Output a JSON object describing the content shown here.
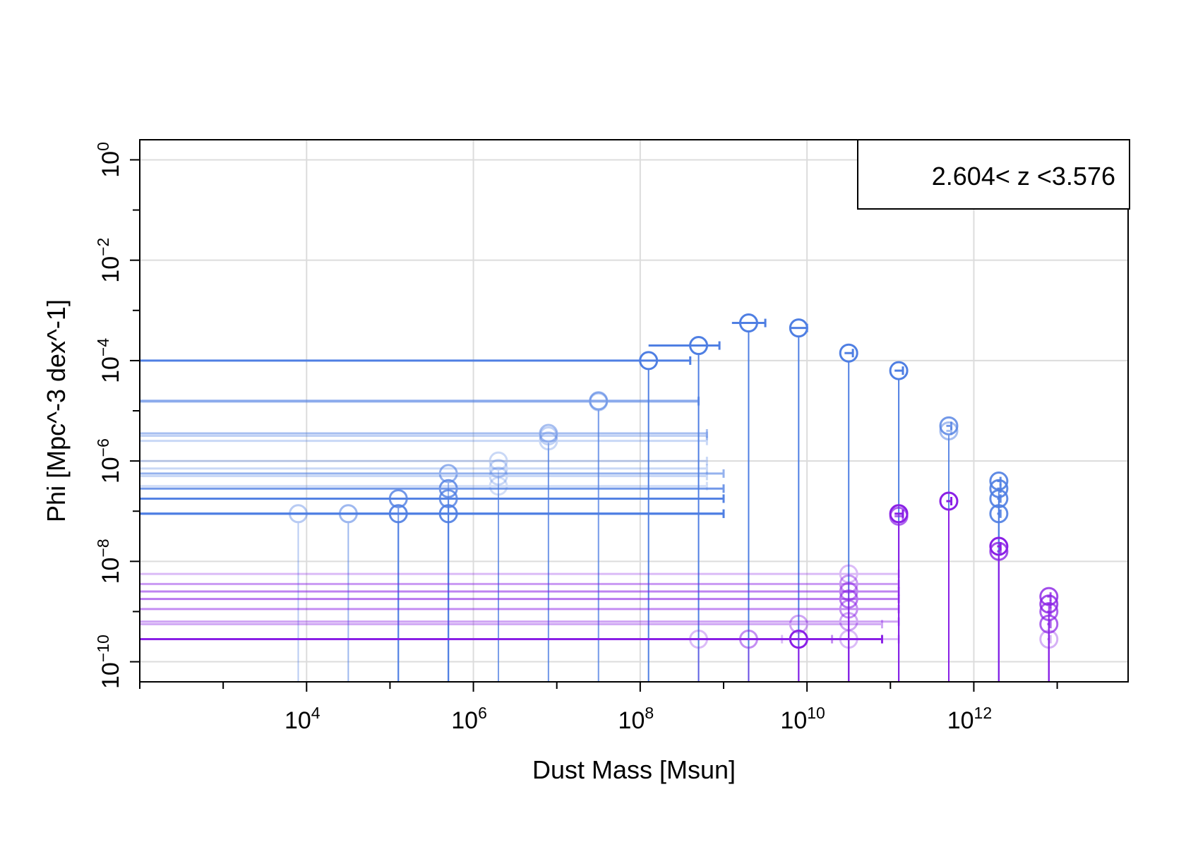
{
  "chart_data": {
    "type": "scatter",
    "title": "",
    "xlabel": "Dust Mass [Msun]",
    "ylabel": "Phi [Mpc^-3 dex^-1]",
    "x_scale": "log",
    "y_scale": "log",
    "xlim_log10": [
      2.0,
      13.85
    ],
    "ylim_log10": [
      -10.4,
      0.4
    ],
    "x_tick_exponents": [
      4,
      6,
      8,
      10,
      12
    ],
    "y_tick_exponents": [
      0,
      -2,
      -4,
      -6,
      -8,
      -10
    ],
    "tick_base": "10",
    "grid": true,
    "legend": {
      "text": "2.604< z <3.576",
      "position": "top-right"
    },
    "series": [
      {
        "color": "#4f7fe3",
        "points": [
          {
            "x": 8.1,
            "y": -4.0,
            "xerr_low": 6.1,
            "xerr_high": 0.5,
            "alpha": 1.0
          },
          {
            "x": 8.7,
            "y": -3.7,
            "xerr_low": 0.6,
            "xerr_high": 0.25,
            "alpha": 1.0
          },
          {
            "x": 9.3,
            "y": -3.25,
            "xerr_low": 0.2,
            "xerr_high": 0.2,
            "alpha": 1.0
          },
          {
            "x": 9.9,
            "y": -3.35,
            "xerr_low": 0.1,
            "xerr_high": 0.1,
            "alpha": 1.0
          },
          {
            "x": 10.5,
            "y": -3.85,
            "xerr_low": 0.05,
            "xerr_high": 0.05,
            "alpha": 1.0
          },
          {
            "x": 11.1,
            "y": -4.2,
            "xerr_low": 0.05,
            "xerr_high": 0.05,
            "alpha": 1.0
          },
          {
            "x": 7.5,
            "y": -4.8,
            "xerr_low": 5.5,
            "xerr_high": 1.2,
            "alpha": 0.6
          },
          {
            "x": 7.5,
            "y": -4.82,
            "xerr_low": 5.5,
            "xerr_high": 1.2,
            "alpha": 0.4
          },
          {
            "x": 6.9,
            "y": -5.45,
            "xerr_low": 4.9,
            "xerr_high": 1.9,
            "alpha": 0.5
          },
          {
            "x": 6.9,
            "y": -5.5,
            "xerr_low": 4.9,
            "xerr_high": 1.9,
            "alpha": 0.35
          },
          {
            "x": 6.9,
            "y": -5.6,
            "xerr_low": 4.9,
            "xerr_high": 1.9,
            "alpha": 0.3
          },
          {
            "x": 11.7,
            "y": -5.3,
            "xerr_low": 0.03,
            "xerr_high": 0.03,
            "alpha": 0.8
          },
          {
            "x": 11.7,
            "y": -5.4,
            "xerr_low": 0.03,
            "xerr_high": 0.03,
            "alpha": 0.5
          },
          {
            "x": 6.3,
            "y": -6.0,
            "xerr_low": 4.3,
            "xerr_high": 2.5,
            "alpha": 0.3
          },
          {
            "x": 6.3,
            "y": -6.15,
            "xerr_low": 4.3,
            "xerr_high": 2.5,
            "alpha": 0.3
          },
          {
            "x": 6.3,
            "y": -6.3,
            "xerr_low": 4.3,
            "xerr_high": 2.5,
            "alpha": 0.3
          },
          {
            "x": 6.3,
            "y": -6.5,
            "xerr_low": 4.3,
            "xerr_high": 2.5,
            "alpha": 0.25
          },
          {
            "x": 5.7,
            "y": -6.25,
            "xerr_low": 3.7,
            "xerr_high": 3.3,
            "alpha": 0.6
          },
          {
            "x": 5.7,
            "y": -6.55,
            "xerr_low": 3.7,
            "xerr_high": 3.3,
            "alpha": 0.8
          },
          {
            "x": 5.7,
            "y": -6.75,
            "xerr_low": 3.7,
            "xerr_high": 3.3,
            "alpha": 0.8
          },
          {
            "x": 5.7,
            "y": -7.05,
            "xerr_low": 3.7,
            "xerr_high": 3.3,
            "alpha": 0.9
          },
          {
            "x": 5.1,
            "y": -6.75,
            "xerr_low": 3.1,
            "xerr_high": 3.9,
            "alpha": 0.8
          },
          {
            "x": 5.1,
            "y": -7.05,
            "xerr_low": 3.1,
            "xerr_high": 3.9,
            "alpha": 0.9
          },
          {
            "x": 4.5,
            "y": -7.05,
            "xerr_low": 2.5,
            "xerr_high": 4.5,
            "alpha": 0.55
          },
          {
            "x": 3.9,
            "y": -7.05,
            "xerr_low": 1.9,
            "xerr_high": 5.1,
            "alpha": 0.4
          },
          {
            "x": 12.3,
            "y": -6.4,
            "xerr_low": 0.02,
            "xerr_high": 0.02,
            "alpha": 0.9
          },
          {
            "x": 12.3,
            "y": -6.55,
            "xerr_low": 0.02,
            "xerr_high": 0.02,
            "alpha": 0.9
          },
          {
            "x": 12.3,
            "y": -6.75,
            "xerr_low": 0.02,
            "xerr_high": 0.02,
            "alpha": 0.9
          },
          {
            "x": 12.3,
            "y": -7.05,
            "xerr_low": 0.02,
            "xerr_high": 0.02,
            "alpha": 0.9
          }
        ]
      },
      {
        "color": "#8a20e6",
        "points": [
          {
            "x": 11.1,
            "y": -7.05,
            "xerr_low": 0.05,
            "xerr_high": 0.05,
            "alpha": 1.0
          },
          {
            "x": 11.1,
            "y": -7.1,
            "xerr_low": 0.05,
            "xerr_high": 0.05,
            "alpha": 0.7
          },
          {
            "x": 11.7,
            "y": -6.8,
            "xerr_low": 0.03,
            "xerr_high": 0.03,
            "alpha": 1.0
          },
          {
            "x": 12.3,
            "y": -7.7,
            "xerr_low": 0.02,
            "xerr_high": 0.02,
            "alpha": 1.0
          },
          {
            "x": 12.3,
            "y": -7.8,
            "xerr_low": 0.02,
            "xerr_high": 0.02,
            "alpha": 0.8
          },
          {
            "x": 12.9,
            "y": -8.7,
            "xerr_low": 0.02,
            "xerr_high": 0.02,
            "alpha": 0.8
          },
          {
            "x": 12.9,
            "y": -8.85,
            "xerr_low": 0.02,
            "xerr_high": 0.02,
            "alpha": 0.8
          },
          {
            "x": 12.9,
            "y": -9.0,
            "xerr_low": 0.02,
            "xerr_high": 0.02,
            "alpha": 0.7
          },
          {
            "x": 12.9,
            "y": -9.25,
            "xerr_low": 0.02,
            "xerr_high": 0.02,
            "alpha": 0.7
          },
          {
            "x": 12.9,
            "y": -9.55,
            "xerr_low": 0.02,
            "xerr_high": 0.02,
            "alpha": 0.35
          },
          {
            "x": 10.5,
            "y": -8.25,
            "xerr_low": 8.5,
            "xerr_high": 0.6,
            "alpha": 0.3
          },
          {
            "x": 10.5,
            "y": -8.45,
            "xerr_low": 8.5,
            "xerr_high": 0.6,
            "alpha": 0.45
          },
          {
            "x": 10.5,
            "y": -8.6,
            "xerr_low": 8.5,
            "xerr_high": 0.6,
            "alpha": 0.55
          },
          {
            "x": 10.5,
            "y": -8.75,
            "xerr_low": 8.5,
            "xerr_high": 0.6,
            "alpha": 0.6
          },
          {
            "x": 10.5,
            "y": -8.95,
            "xerr_low": 8.5,
            "xerr_high": 0.6,
            "alpha": 0.5
          },
          {
            "x": 10.5,
            "y": -9.2,
            "xerr_low": 8.5,
            "xerr_high": 0.6,
            "alpha": 0.4
          },
          {
            "x": 10.5,
            "y": -9.55,
            "xerr_low": 8.5,
            "xerr_high": 0.6,
            "alpha": 0.3
          },
          {
            "x": 9.9,
            "y": -9.55,
            "xerr_low": 7.9,
            "xerr_high": 1.0,
            "alpha": 1.0
          },
          {
            "x": 9.9,
            "y": -9.25,
            "xerr_low": 7.9,
            "xerr_high": 1.0,
            "alpha": 0.4
          },
          {
            "x": 9.3,
            "y": -9.55,
            "xerr_low": 7.3,
            "xerr_high": 1.0,
            "alpha": 0.5
          },
          {
            "x": 8.7,
            "y": -9.55,
            "xerr_low": 6.7,
            "xerr_high": 1.0,
            "alpha": 0.3
          }
        ]
      }
    ]
  }
}
